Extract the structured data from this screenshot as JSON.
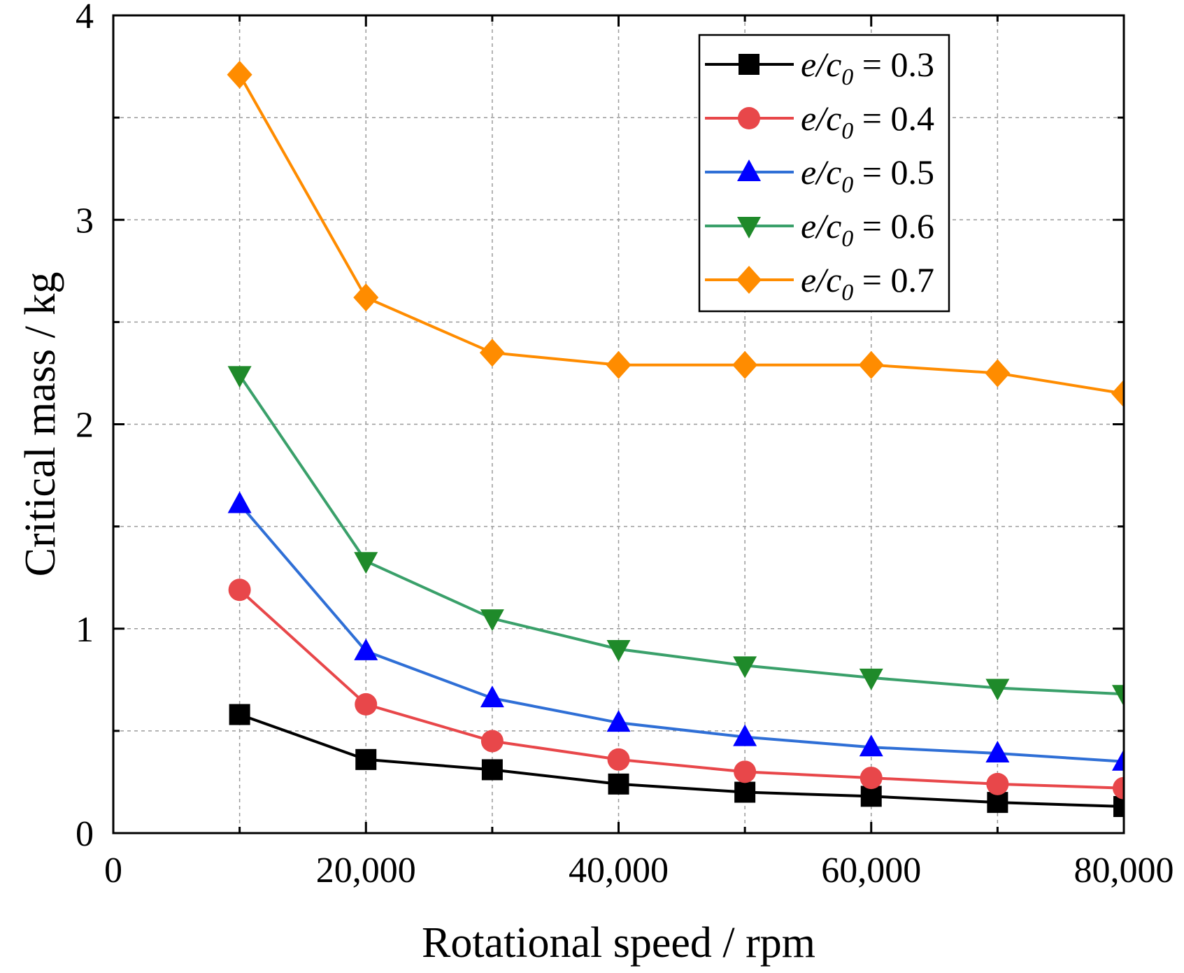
{
  "chart_data": {
    "type": "line",
    "title": "",
    "xlabel": "Rotational speed / rpm",
    "ylabel": "Critical mass / kg",
    "xlim": [
      0,
      80000
    ],
    "ylim": [
      0,
      4
    ],
    "xticks": [
      0,
      20000,
      40000,
      60000,
      80000
    ],
    "xtick_labels": [
      "0",
      "20,000",
      "40,000",
      "60,000",
      "80,000"
    ],
    "yticks": [
      0,
      1,
      2,
      3,
      4
    ],
    "ytick_labels": [
      "0",
      "1",
      "2",
      "3",
      "4"
    ],
    "grid": true,
    "legend_position": "top-right",
    "x": [
      10000,
      20000,
      30000,
      40000,
      50000,
      60000,
      70000,
      80000
    ],
    "series": [
      {
        "name": "e/c0 = 0.3",
        "ratio_label": "e/c",
        "subscript": "0",
        "value_label": " = 0.3",
        "color": "#000000",
        "marker": "square",
        "values": [
          0.58,
          0.36,
          0.31,
          0.24,
          0.2,
          0.18,
          0.15,
          0.13
        ]
      },
      {
        "name": "e/c0 = 0.4",
        "ratio_label": "e/c",
        "subscript": "0",
        "value_label": " = 0.4",
        "color": "#e8474a",
        "marker": "circle",
        "values": [
          1.19,
          0.63,
          0.45,
          0.36,
          0.3,
          0.27,
          0.24,
          0.22
        ]
      },
      {
        "name": "e/c0 = 0.5",
        "ratio_label": "e/c",
        "subscript": "0",
        "value_label": " = 0.5",
        "color": "#0000ff",
        "marker": "triangle-up",
        "values": [
          1.61,
          0.89,
          0.66,
          0.54,
          0.47,
          0.42,
          0.39,
          0.35
        ]
      },
      {
        "name": "e/c0 = 0.6",
        "ratio_label": "e/c",
        "subscript": "0",
        "value_label": " = 0.6",
        "color": "#1f8a2a",
        "marker": "triangle-down",
        "values": [
          2.24,
          1.33,
          1.05,
          0.9,
          0.82,
          0.76,
          0.71,
          0.68
        ]
      },
      {
        "name": "e/c0 = 0.7",
        "ratio_label": "e/c",
        "subscript": "0",
        "value_label": " = 0.7",
        "color": "#ff8c00",
        "marker": "diamond",
        "values": [
          3.71,
          2.62,
          2.35,
          2.29,
          2.29,
          2.29,
          2.25,
          2.15
        ]
      }
    ],
    "line_colors": {
      "e/c0 = 0.3": "#000000",
      "e/c0 = 0.4": "#e8474a",
      "e/c0 = 0.5": "#2f6fd6",
      "e/c0 = 0.6": "#3aa06a",
      "e/c0 = 0.7": "#ff8c00"
    }
  }
}
